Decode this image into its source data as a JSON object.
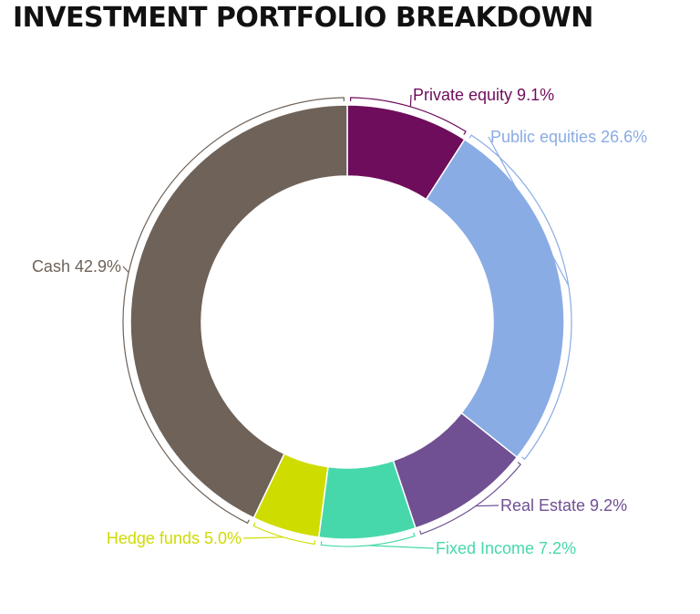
{
  "chart_data": {
    "type": "pie",
    "title": "INVESTMENT PORTFOLIO BREAKDOWN",
    "slices": [
      {
        "label": "Private equity",
        "value": 9.1,
        "display": "Private equity 9.1%",
        "color": "#6e0d5b"
      },
      {
        "label": "Public equities",
        "value": 26.6,
        "display": "Public equities 26.6%",
        "color": "#8aace4"
      },
      {
        "label": "Real Estate",
        "value": 9.2,
        "display": "Real Estate 9.2%",
        "color": "#705092"
      },
      {
        "label": "Fixed Income",
        "value": 7.2,
        "display": "Fixed Income 7.2%",
        "color": "#46d8ab"
      },
      {
        "label": "Hedge funds",
        "value": 5.0,
        "display": "Hedge funds 5.0%",
        "color": "#cfdc00"
      },
      {
        "label": "Cash",
        "value": 42.9,
        "display": "Cash 42.9%",
        "color": "#6e6259"
      }
    ],
    "donut": true,
    "start_angle": "top",
    "direction": "clockwise",
    "legend": "none"
  }
}
